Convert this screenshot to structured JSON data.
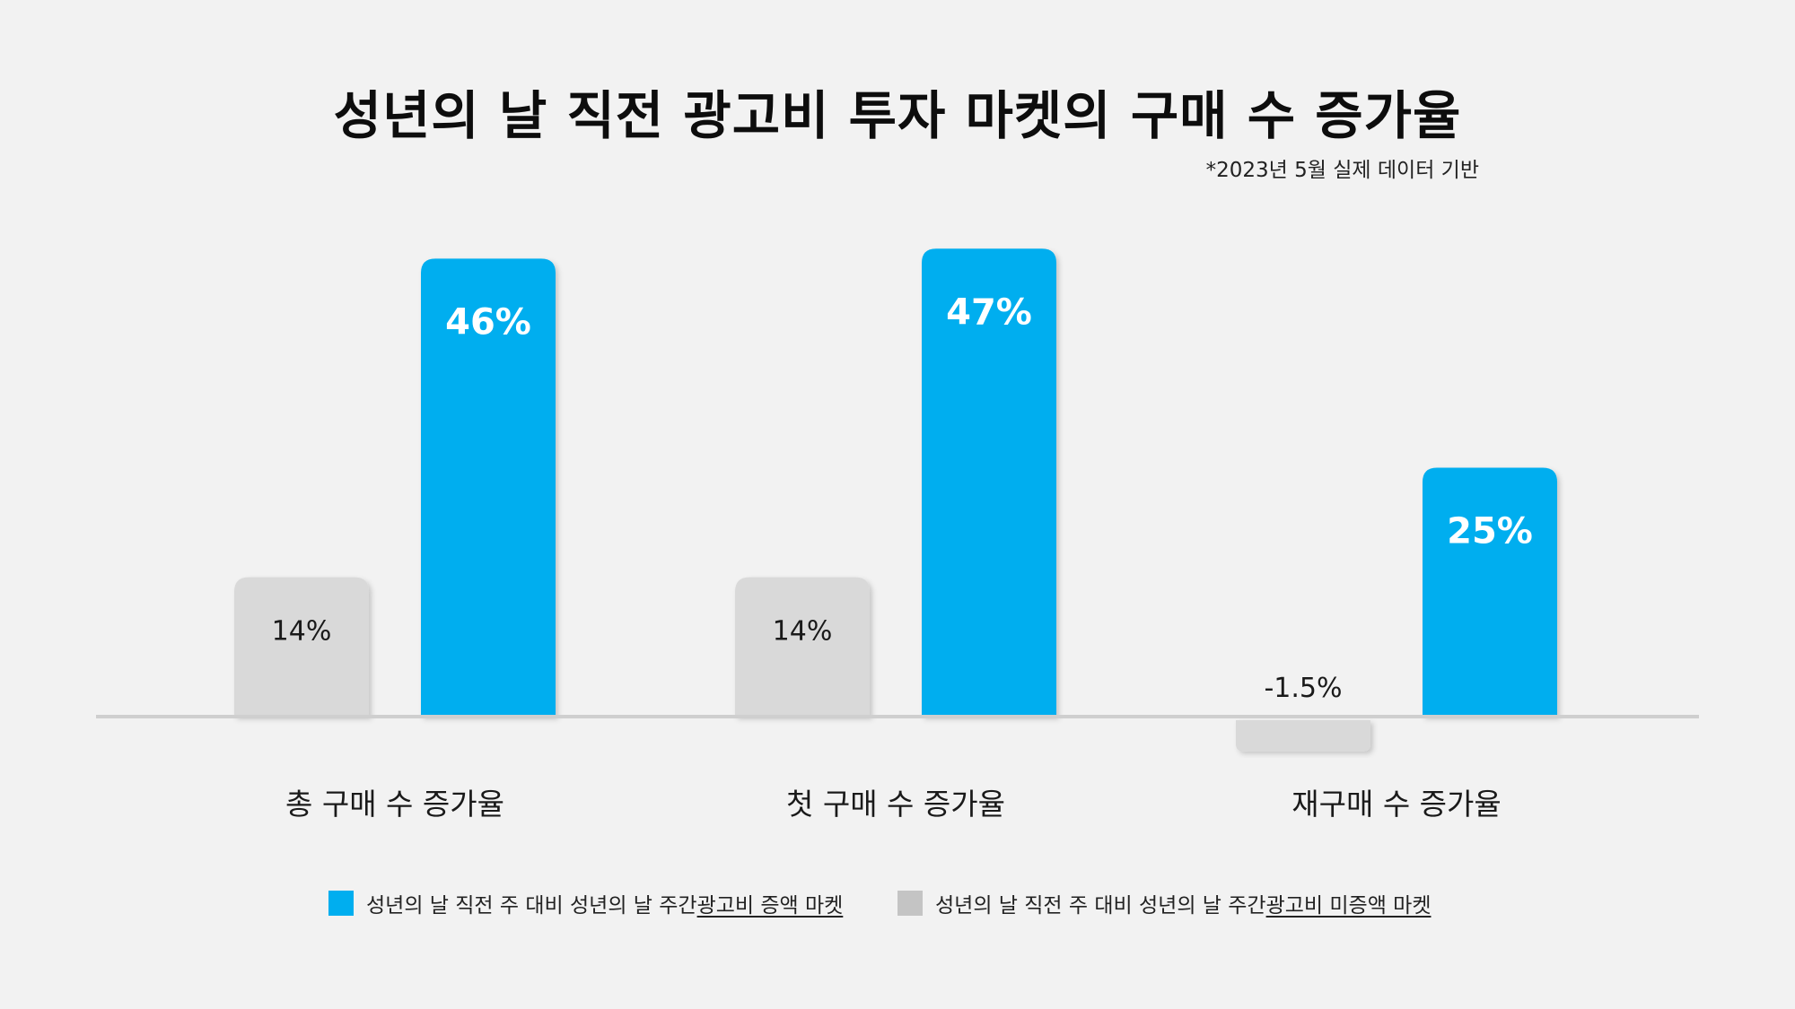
{
  "chart_data": {
    "type": "bar",
    "title": "성년의 날 직전 광고비 투자 마켓의 구매 수 증가율",
    "subtitle": "*2023년 5월 실제 데이터 기반",
    "categories": [
      "총 구매 수 증가율",
      "첫 구매 수 증가율",
      "재구매 수 증가율"
    ],
    "series": [
      {
        "name": "성년의 날 직전 주 대비 성년의 날 주간 광고비 미증액 마켓",
        "values": [
          14,
          14,
          -1.5
        ],
        "labels": [
          "14%",
          "14%",
          "-1.5%"
        ],
        "color": "#d9d9d9"
      },
      {
        "name": "성년의 날 직전 주 대비 성년의 날 주간 광고비 증액 마켓",
        "values": [
          46,
          47,
          25
        ],
        "labels": [
          "46%",
          "47%",
          "25%"
        ],
        "color": "#00aeef"
      }
    ],
    "legend": [
      {
        "prefix": "성년의 날 직전 주 대비 성년의 날 주간 ",
        "emphasis": "광고비 증액 마켓",
        "color": "#00aeef"
      },
      {
        "prefix": "성년의 날 직전 주 대비 성년의 날 주간 ",
        "emphasis": "광고비 미증액 마켓",
        "color": "#c4c4c4"
      }
    ],
    "legend_position": "bottom",
    "grid": false,
    "ylim": [
      -5,
      50
    ]
  }
}
